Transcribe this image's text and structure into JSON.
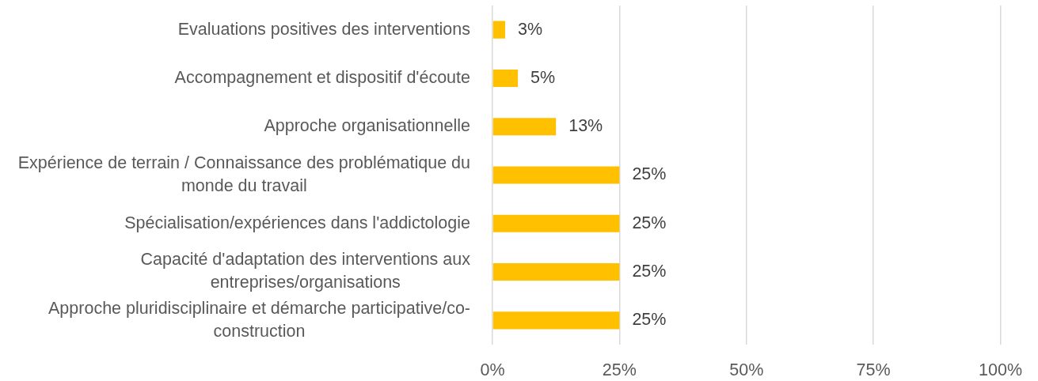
{
  "chart_data": {
    "type": "bar",
    "orientation": "horizontal",
    "categories": [
      "Evaluations positives des interventions",
      "Accompagnement et dispositif d'écoute",
      "Approche organisationnelle",
      "Expérience de terrain / Connaissance des problématique du monde du travail",
      "Spécialisation/expériences dans l'addictologie",
      "Capacité d'adaptation des interventions aux entreprises/organisations",
      "Approche pluridisciplinaire et démarche participative/co-construction"
    ],
    "values": [
      2.5,
      5,
      12.5,
      25,
      25,
      25,
      25
    ],
    "value_labels": [
      "3%",
      "5%",
      "13%",
      "25%",
      "25%",
      "25%",
      "25%"
    ],
    "color": "#ffc000",
    "xlim": [
      0,
      100
    ],
    "xticks": [
      {
        "value": 0,
        "label": "0%"
      },
      {
        "value": 25,
        "label": "25%"
      },
      {
        "value": 50,
        "label": "50%"
      },
      {
        "value": 75,
        "label": "75%"
      },
      {
        "value": 100,
        "label": "100%"
      }
    ],
    "grid": "x"
  }
}
